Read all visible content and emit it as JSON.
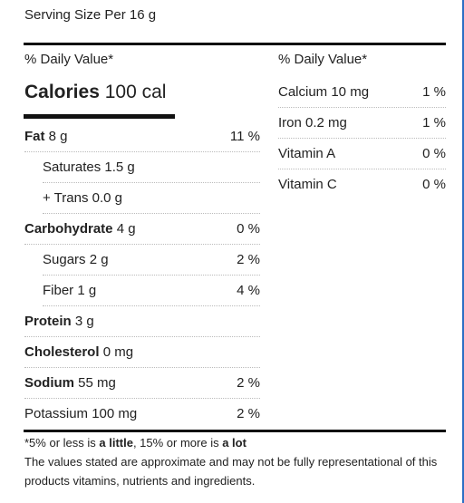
{
  "serving": "Serving Size Per 16 g",
  "daily_value_header": "% Daily Value*",
  "calories": {
    "label": "Calories",
    "value": "100 cal"
  },
  "left_rows": [
    {
      "label": "Fat",
      "amount": "8 g",
      "pct": "11 %"
    },
    {
      "label": "Saturates 1.5 g",
      "pct": ""
    },
    {
      "label": "+ Trans 0.0 g",
      "pct": ""
    },
    {
      "label": "Carbohydrate",
      "amount": "4 g",
      "pct": "0 %"
    },
    {
      "label": "Sugars 2 g",
      "pct": "2 %"
    },
    {
      "label": "Fiber 1 g",
      "pct": "4 %"
    },
    {
      "label": "Protein",
      "amount": "3 g",
      "pct": ""
    },
    {
      "label": "Cholesterol",
      "amount": "0 mg",
      "pct": ""
    },
    {
      "label": "Sodium",
      "amount": "55 mg",
      "pct": "2 %"
    },
    {
      "label": "Potassium 100 mg",
      "pct": "2 %"
    }
  ],
  "right_rows": [
    {
      "label": "Calcium 10 mg",
      "pct": "1 %"
    },
    {
      "label": "Iron 0.2 mg",
      "pct": "1 %"
    },
    {
      "label": "Vitamin A",
      "pct": "0 %"
    },
    {
      "label": "Vitamin C",
      "pct": "0 %"
    }
  ],
  "footnote": {
    "a": "*5% or less is ",
    "b": "a little",
    "c": ", 15% or more is ",
    "d": "a lot"
  },
  "disclaimer": "The values stated are approximate and may not be fully representational of this products vitamins, nutrients and ingredients."
}
